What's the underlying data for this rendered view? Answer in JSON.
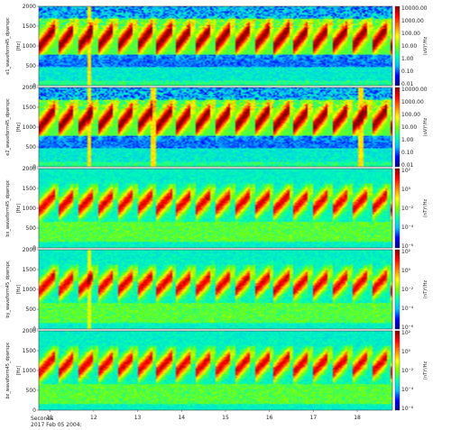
{
  "chart_data": {
    "type": "heatmap",
    "x_axis": {
      "ticks": [
        "11",
        "12",
        "13",
        "14",
        "15",
        "16",
        "17",
        "18"
      ],
      "label": "Seconds",
      "date": "2017 Feb 05 2004:"
    },
    "y_axis": {
      "label": "[Hz]",
      "ticks": [
        "0",
        "500",
        "1000",
        "1500",
        "2000"
      ],
      "ylim": [
        0,
        2000
      ]
    },
    "panels": [
      {
        "name": "e1_waveform45_dpwrspc",
        "colorbar": {
          "unit": "(uV)²/Hz",
          "ticks": [
            "10000.00",
            "1000.00",
            "100.00",
            "10.00",
            "1.00",
            "0.10",
            "0.01"
          ]
        },
        "band_hz": [
          800,
          1500
        ],
        "spike_seconds": [
          11.9
        ]
      },
      {
        "name": "e2_waveform45_dpwrspc",
        "colorbar": {
          "unit": "(uV)²/Hz",
          "ticks": [
            "10000.00",
            "1000.00",
            "100.00",
            "10.00",
            "1.00",
            "0.10",
            "0.01"
          ]
        },
        "band_hz": [
          800,
          1500
        ],
        "spike_seconds": [
          11.9,
          13.35,
          18.1
        ]
      },
      {
        "name": "bx_waveform45_dpwrspc",
        "colorbar": {
          "unit": "(nT)²/Hz",
          "ticks": [
            "10²",
            "10⁰",
            "10⁻²",
            "10⁻⁴",
            "10⁻⁶"
          ]
        },
        "band_hz": [
          800,
          1400
        ],
        "spike_seconds": []
      },
      {
        "name": "by_waveform45_dpwrspc",
        "colorbar": {
          "unit": "(nT)²/Hz",
          "ticks": [
            "10²",
            "10⁰",
            "10⁻²",
            "10⁻⁴",
            "10⁻⁶"
          ]
        },
        "band_hz": [
          800,
          1400
        ],
        "spike_seconds": [
          11.9
        ]
      },
      {
        "name": "bz_waveform45_dpwrspc",
        "colorbar": {
          "unit": "(nT)²/Hz",
          "ticks": [
            "10²",
            "10⁰",
            "10⁻²",
            "10⁻⁴",
            "10⁻⁶"
          ]
        },
        "band_hz": [
          800,
          1400
        ],
        "spike_seconds": []
      }
    ],
    "xlim": [
      10.75,
      18.8
    ],
    "colormap": [
      "#00007f",
      "#0000ff",
      "#00bfff",
      "#00ffb0",
      "#7fff00",
      "#ffff00",
      "#ff7f00",
      "#ff0000",
      "#7f0000"
    ]
  }
}
